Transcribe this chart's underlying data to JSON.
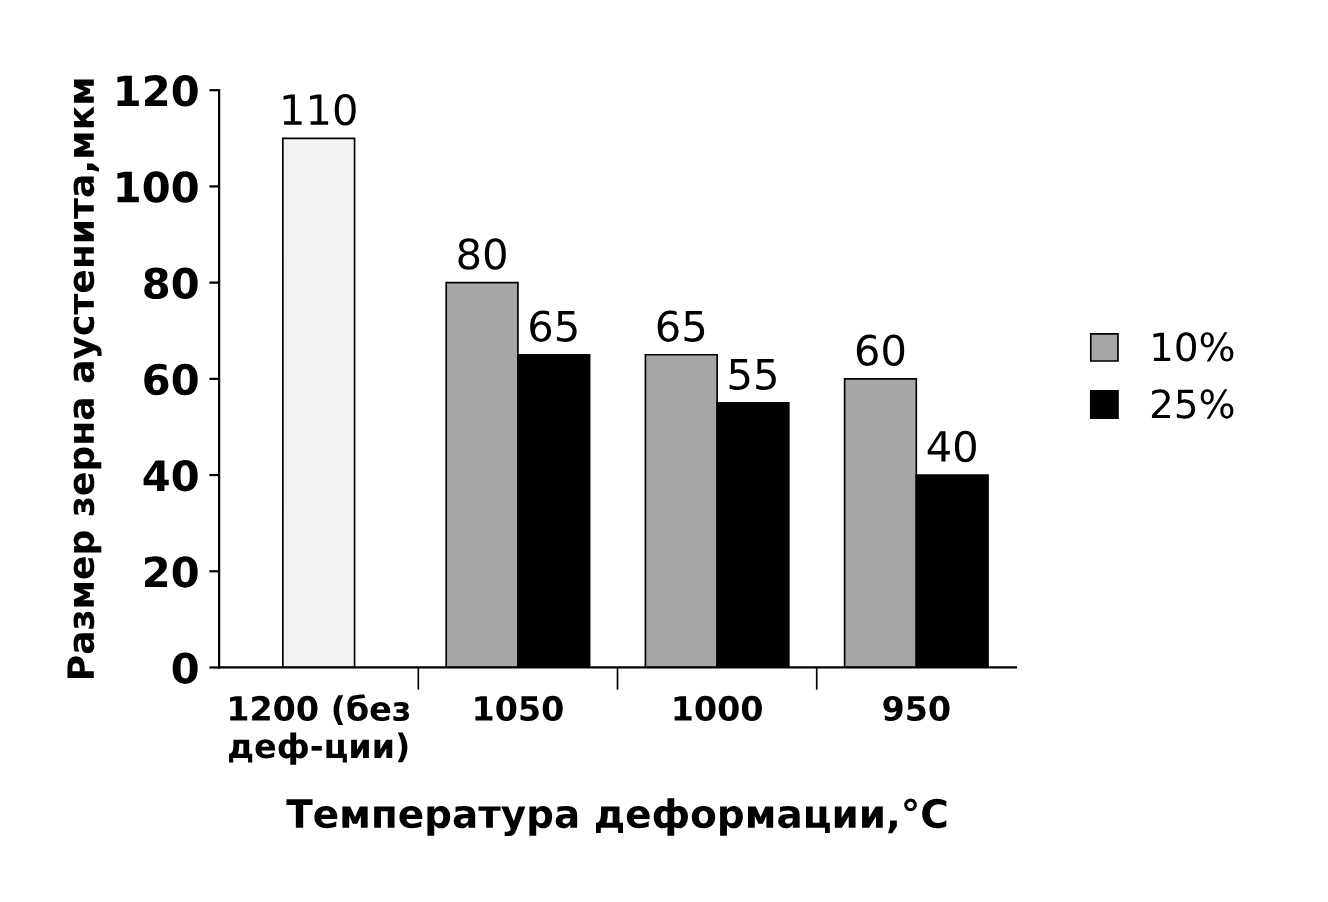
{
  "chart_data": {
    "type": "bar",
    "xlabel": "Температура деформации,°C",
    "ylabel": "Размер зерна аустенита,мкм",
    "categories": [
      "1200 (без\nдеф-ции)",
      "1050",
      "1000",
      "950"
    ],
    "series": [
      {
        "color": "#f2f2f2",
        "values": [
          110,
          null,
          null,
          null
        ]
      },
      {
        "name": "10%",
        "color": "#a6a6a6",
        "values": [
          null,
          80,
          65,
          60
        ]
      },
      {
        "name": "25%",
        "color": "#000000",
        "values": [
          null,
          65,
          55,
          40
        ]
      }
    ],
    "ylim": [
      0,
      120
    ],
    "yticks": [
      0,
      20,
      40,
      60,
      80,
      100,
      120
    ],
    "data_labels": true,
    "legend": "right",
    "grid": false
  }
}
